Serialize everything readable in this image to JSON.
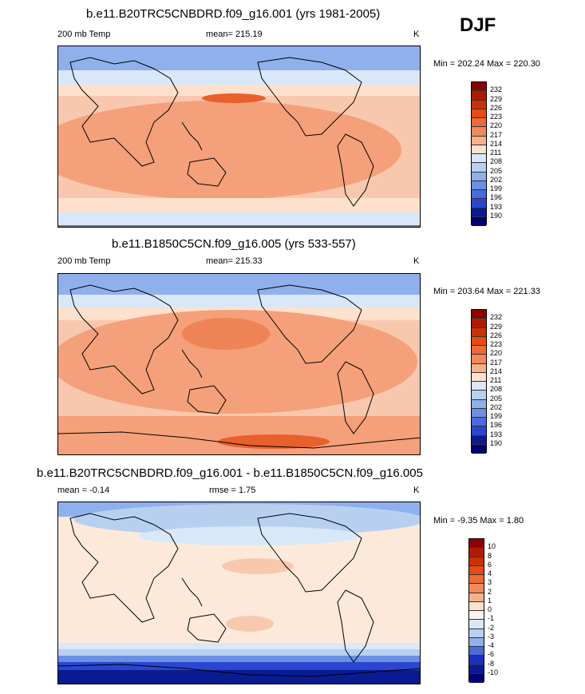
{
  "season": "DJF",
  "panels": [
    {
      "title": "b.e11.B20TRC5CNBDRD.f09_g16.001 (yrs 1981-2005)",
      "left_label": "200 mb Temp",
      "center_label": "mean= 215.19",
      "unit": "K",
      "minmax": "Min = 202.24 Max = 220.30",
      "levels": [
        "232",
        "229",
        "226",
        "223",
        "220",
        "217",
        "214",
        "211",
        "208",
        "205",
        "202",
        "199",
        "196",
        "193",
        "190"
      ],
      "colors": [
        "#8b0000",
        "#b01a00",
        "#cc3000",
        "#e84a10",
        "#f06a35",
        "#f08a5a",
        "#f8b08a",
        "#fde1cc",
        "#d8e8f8",
        "#b8d0f0",
        "#8fb0ec",
        "#6a90e4",
        "#4a6ae0",
        "#2a46d0",
        "#0a1a90",
        "#000070"
      ]
    },
    {
      "title": "b.e11.B1850C5CN.f09_g16.005 (yrs 533-557)",
      "left_label": "200 mb Temp",
      "center_label": "mean= 215.33",
      "unit": "K",
      "minmax": "Min = 203.64 Max = 221.33",
      "levels": [
        "232",
        "229",
        "226",
        "223",
        "220",
        "217",
        "214",
        "211",
        "208",
        "205",
        "202",
        "199",
        "196",
        "193",
        "190"
      ],
      "colors": [
        "#8b0000",
        "#b01a00",
        "#cc3000",
        "#e84a10",
        "#f06a35",
        "#f08a5a",
        "#f8b08a",
        "#fde1cc",
        "#d8e8f8",
        "#b8d0f0",
        "#8fb0ec",
        "#6a90e4",
        "#4a6ae0",
        "#2a46d0",
        "#0a1a90",
        "#000070"
      ]
    },
    {
      "title": "b.e11.B20TRC5CNBDRD.f09_g16.001 - b.e11.B1850C5CN.f09_g16.005",
      "left_label": "mean =  -0.14",
      "center_label": "rmse =   1.75",
      "unit": "K",
      "minmax": "Min =  -9.35 Max =   1.80",
      "levels": [
        "10",
        "8",
        "6",
        "4",
        "3",
        "2",
        "1",
        "0",
        "-1",
        "-2",
        "-3",
        "-4",
        "-6",
        "-8",
        "-10"
      ],
      "colors": [
        "#8b0000",
        "#b01a00",
        "#cc3000",
        "#e84a10",
        "#f06a35",
        "#f08a5a",
        "#f8b08a",
        "#fde1cc",
        "#fbf3ec",
        "#d8e8f8",
        "#b8d0f0",
        "#8fb0ec",
        "#4a6ae0",
        "#1a30c0",
        "#0a1a90",
        "#000070"
      ]
    }
  ]
}
